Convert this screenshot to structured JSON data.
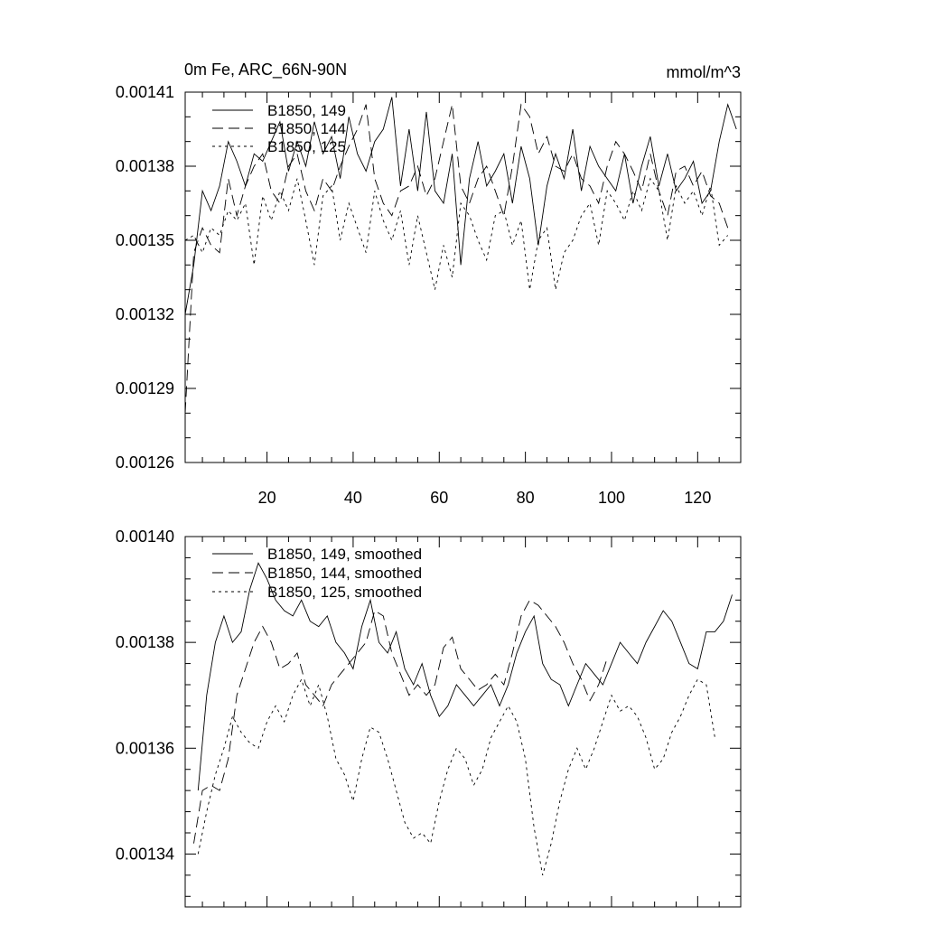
{
  "chart_data": [
    {
      "type": "line",
      "title_left": "0m Fe, ARC_66N-90N",
      "title_right": "mmol/m^3",
      "ylim": [
        0.00126,
        0.00141
      ],
      "xlim": [
        1,
        130
      ],
      "ytick_labels": [
        "0.00126",
        "0.00129",
        "0.00132",
        "0.00135",
        "0.00138",
        "0.00141"
      ],
      "xtick_labels": [
        "20",
        "40",
        "60",
        "80",
        "100",
        "120"
      ],
      "grid": false,
      "legend_position": "top-left",
      "series": [
        {
          "name": "B1850, 149",
          "dash": "solid",
          "x": [
            1,
            3,
            5,
            7,
            9,
            11,
            13,
            15,
            17,
            19,
            21,
            23,
            25,
            27,
            29,
            31,
            33,
            35,
            37,
            39,
            41,
            43,
            45,
            47,
            49,
            51,
            53,
            55,
            57,
            59,
            61,
            63,
            65,
            67,
            69,
            71,
            73,
            75,
            77,
            79,
            81,
            83,
            85,
            87,
            89,
            91,
            93,
            95,
            97,
            99,
            101,
            103,
            105,
            107,
            109,
            111,
            113,
            115,
            117,
            119,
            121,
            123,
            125,
            127,
            129
          ],
          "y": [
            0.00132,
            0.00134,
            0.00137,
            0.001362,
            0.001372,
            0.00139,
            0.001382,
            0.001372,
            0.001385,
            0.001382,
            0.00139,
            0.001398,
            0.001378,
            0.00139,
            0.00138,
            0.001398,
            0.001385,
            0.001392,
            0.001375,
            0.0014,
            0.001385,
            0.001378,
            0.00139,
            0.001395,
            0.001408,
            0.001372,
            0.001395,
            0.00137,
            0.001402,
            0.00137,
            0.001365,
            0.001385,
            0.00134,
            0.001375,
            0.00139,
            0.001372,
            0.001378,
            0.001385,
            0.001365,
            0.001388,
            0.001375,
            0.001348,
            0.001372,
            0.001385,
            0.001375,
            0.001395,
            0.00137,
            0.001388,
            0.00138,
            0.001375,
            0.00137,
            0.001385,
            0.001365,
            0.00138,
            0.001392,
            0.001372,
            0.001385,
            0.00137,
            0.001375,
            0.001382,
            0.001365,
            0.00137,
            0.00139,
            0.001405,
            0.001395
          ]
        },
        {
          "name": "B1850, 144",
          "dash": "long-dash",
          "x": [
            1,
            3,
            5,
            7,
            9,
            11,
            13,
            15,
            17,
            19,
            21,
            23,
            25,
            27,
            29,
            31,
            33,
            35,
            37,
            39,
            41,
            43,
            45,
            47,
            49,
            51,
            53,
            55,
            57,
            59,
            61,
            63,
            65,
            67,
            69,
            71,
            73,
            75,
            77,
            79,
            81,
            83,
            85,
            87,
            89,
            91,
            93,
            95,
            97,
            99,
            101,
            103,
            105,
            107,
            109,
            111,
            113,
            115,
            117,
            119,
            121,
            123,
            125,
            127
          ],
          "y": [
            0.00128,
            0.001345,
            0.001355,
            0.001348,
            0.001345,
            0.001375,
            0.00136,
            0.001372,
            0.00138,
            0.001385,
            0.00137,
            0.001365,
            0.00138,
            0.001385,
            0.00137,
            0.001362,
            0.001375,
            0.00137,
            0.00138,
            0.001388,
            0.001395,
            0.001405,
            0.001375,
            0.001365,
            0.00136,
            0.00137,
            0.001372,
            0.00138,
            0.001368,
            0.001375,
            0.00139,
            0.001405,
            0.001372,
            0.001365,
            0.001375,
            0.00138,
            0.00137,
            0.00136,
            0.00138,
            0.001405,
            0.0014,
            0.001385,
            0.001392,
            0.00138,
            0.001378,
            0.001385,
            0.001375,
            0.001372,
            0.001365,
            0.00138,
            0.00139,
            0.001385,
            0.001378,
            0.00137,
            0.001385,
            0.00137,
            0.00136,
            0.001378,
            0.00138,
            0.001372,
            0.001378,
            0.001368,
            0.001365,
            0.001355
          ]
        },
        {
          "name": "B1850, 125",
          "dash": "short-dash",
          "x": [
            1,
            3,
            5,
            7,
            9,
            11,
            13,
            15,
            17,
            19,
            21,
            23,
            25,
            27,
            29,
            31,
            33,
            35,
            37,
            39,
            41,
            43,
            45,
            47,
            49,
            51,
            53,
            55,
            57,
            59,
            61,
            63,
            65,
            67,
            69,
            71,
            73,
            75,
            77,
            79,
            81,
            83,
            85,
            87,
            89,
            91,
            93,
            95,
            97,
            99,
            101,
            103,
            105,
            107,
            109,
            111,
            113,
            115,
            117,
            119,
            121,
            123,
            125,
            127
          ],
          "y": [
            0.00135,
            0.001352,
            0.001345,
            0.001355,
            0.001352,
            0.001362,
            0.001358,
            0.001365,
            0.00134,
            0.001368,
            0.001358,
            0.00137,
            0.001362,
            0.001375,
            0.001358,
            0.00134,
            0.001368,
            0.001372,
            0.00135,
            0.001365,
            0.001355,
            0.001345,
            0.00137,
            0.001358,
            0.00135,
            0.001362,
            0.00134,
            0.00136,
            0.001345,
            0.00133,
            0.001348,
            0.001335,
            0.001365,
            0.00136,
            0.00135,
            0.001342,
            0.00136,
            0.001362,
            0.001348,
            0.001358,
            0.00133,
            0.00135,
            0.001355,
            0.00133,
            0.001345,
            0.00135,
            0.00136,
            0.001365,
            0.001348,
            0.00137,
            0.001365,
            0.001358,
            0.00137,
            0.001362,
            0.001375,
            0.00137,
            0.00135,
            0.001372,
            0.001365,
            0.00137,
            0.00136,
            0.001372,
            0.001348,
            0.001352
          ]
        }
      ]
    },
    {
      "type": "line",
      "ylim": [
        0.00133,
        0.0014
      ],
      "xlim": [
        1,
        130
      ],
      "ytick_labels": [
        "0.00134",
        "0.00136",
        "0.00138",
        "0.00140"
      ],
      "grid": false,
      "legend_position": "top-left",
      "series": [
        {
          "name": "B1850, 149, smoothed",
          "dash": "solid",
          "x": [
            4,
            6,
            8,
            10,
            12,
            14,
            16,
            18,
            20,
            22,
            24,
            26,
            28,
            30,
            32,
            34,
            36,
            38,
            40,
            42,
            44,
            46,
            48,
            50,
            52,
            54,
            56,
            58,
            60,
            62,
            64,
            66,
            68,
            70,
            72,
            74,
            76,
            78,
            80,
            82,
            84,
            86,
            88,
            90,
            92,
            94,
            96,
            98,
            100,
            102,
            104,
            106,
            108,
            110,
            112,
            114,
            116,
            118,
            120,
            122,
            124,
            126,
            128
          ],
          "y": [
            0.001352,
            0.00137,
            0.00138,
            0.001385,
            0.00138,
            0.001382,
            0.00139,
            0.001395,
            0.001392,
            0.001388,
            0.001386,
            0.001385,
            0.001388,
            0.001384,
            0.001383,
            0.001385,
            0.00138,
            0.001378,
            0.001375,
            0.001383,
            0.001388,
            0.00138,
            0.001378,
            0.001382,
            0.001375,
            0.001372,
            0.001376,
            0.00137,
            0.001366,
            0.001368,
            0.001372,
            0.00137,
            0.001368,
            0.00137,
            0.001372,
            0.001368,
            0.001372,
            0.001378,
            0.001382,
            0.001385,
            0.001376,
            0.001373,
            0.001372,
            0.001368,
            0.001372,
            0.001376,
            0.001374,
            0.001372,
            0.001376,
            0.00138,
            0.001378,
            0.001376,
            0.00138,
            0.001383,
            0.001386,
            0.001384,
            0.00138,
            0.001376,
            0.001375,
            0.001382,
            0.001382,
            0.001384,
            0.001389
          ]
        },
        {
          "name": "B1850, 144, smoothed",
          "dash": "long-dash",
          "x": [
            3,
            5,
            7,
            9,
            11,
            13,
            15,
            17,
            19,
            21,
            23,
            25,
            27,
            29,
            31,
            33,
            35,
            37,
            39,
            41,
            43,
            45,
            47,
            49,
            51,
            53,
            55,
            57,
            59,
            61,
            63,
            65,
            67,
            69,
            71,
            73,
            75,
            77,
            79,
            81,
            83,
            85,
            87,
            89,
            91,
            93,
            95,
            97,
            99
          ],
          "y": [
            0.001342,
            0.001352,
            0.001353,
            0.001352,
            0.001358,
            0.00137,
            0.001375,
            0.00138,
            0.001383,
            0.00138,
            0.001375,
            0.001376,
            0.001378,
            0.001372,
            0.00137,
            0.001368,
            0.001372,
            0.001374,
            0.001376,
            0.001378,
            0.00138,
            0.001386,
            0.001385,
            0.001378,
            0.001374,
            0.00137,
            0.001372,
            0.00137,
            0.001372,
            0.001379,
            0.001381,
            0.001375,
            0.001373,
            0.001371,
            0.001372,
            0.001374,
            0.001372,
            0.001378,
            0.001385,
            0.001388,
            0.001387,
            0.001385,
            0.001383,
            0.00138,
            0.001376,
            0.001373,
            0.001369,
            0.001372,
            0.001377
          ]
        },
        {
          "name": "B1850, 125, smoothed",
          "dash": "short-dash",
          "x": [
            4,
            6,
            8,
            10,
            12,
            14,
            16,
            18,
            20,
            22,
            24,
            26,
            28,
            30,
            32,
            34,
            36,
            38,
            40,
            42,
            44,
            46,
            48,
            50,
            52,
            54,
            56,
            58,
            60,
            62,
            64,
            66,
            68,
            70,
            72,
            74,
            76,
            78,
            80,
            82,
            84,
            86,
            88,
            90,
            92,
            94,
            96,
            98,
            100,
            102,
            104,
            106,
            108,
            110,
            112,
            114,
            116,
            118,
            120,
            122,
            124
          ],
          "y": [
            0.00134,
            0.001348,
            0.001355,
            0.00136,
            0.001366,
            0.001363,
            0.001361,
            0.00136,
            0.001365,
            0.001368,
            0.001365,
            0.00137,
            0.001373,
            0.001368,
            0.001372,
            0.001366,
            0.001358,
            0.001355,
            0.00135,
            0.001358,
            0.001364,
            0.001363,
            0.001358,
            0.001352,
            0.001346,
            0.001343,
            0.001344,
            0.001342,
            0.00135,
            0.001356,
            0.00136,
            0.001358,
            0.001353,
            0.001356,
            0.001362,
            0.001365,
            0.001368,
            0.001365,
            0.001358,
            0.001345,
            0.001336,
            0.001342,
            0.00135,
            0.001356,
            0.00136,
            0.001356,
            0.00136,
            0.001365,
            0.00137,
            0.001367,
            0.001368,
            0.001366,
            0.001362,
            0.001356,
            0.001358,
            0.001363,
            0.001366,
            0.00137,
            0.001373,
            0.001372,
            0.001362
          ]
        }
      ]
    }
  ]
}
